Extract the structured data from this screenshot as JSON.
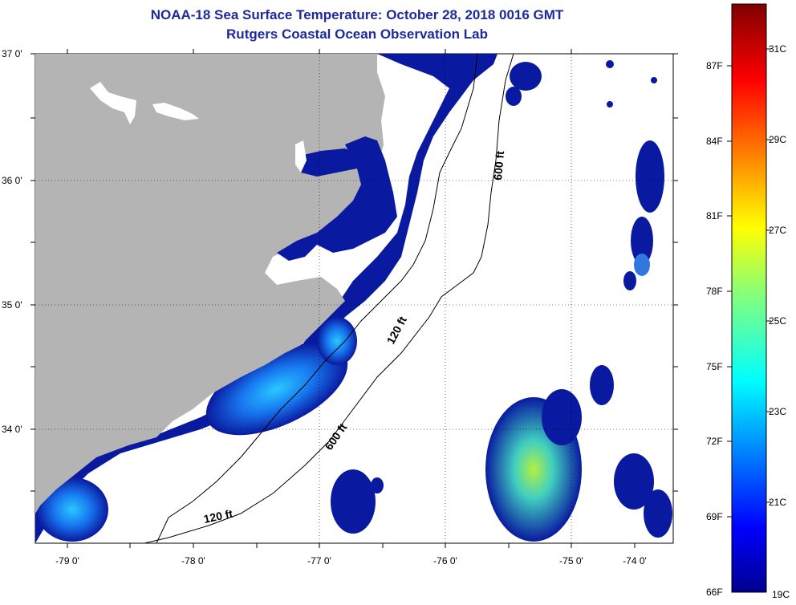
{
  "header": {
    "title": "NOAA-18 Sea Surface Temperature:  October 28, 2018 0016 GMT",
    "subtitle": "Rutgers Coastal Ocean Observation Lab"
  },
  "map": {
    "lat_labels": [
      "37 0'",
      "36 0'",
      "35 0'",
      "34 0'"
    ],
    "lon_labels": [
      "-79 0'",
      "-78 0'",
      "-77 0'",
      "-76 0'",
      "-75 0'",
      "-74 0'"
    ],
    "contour_labels": [
      "600 ft",
      "120 ft",
      "600 ft",
      "120 ft"
    ],
    "colors": {
      "land": "#b4b4b4",
      "cold_water": "#0a1aa0",
      "lake": "#ffffff"
    }
  },
  "colorbar": {
    "fahrenheit_labels": [
      "87F",
      "84F",
      "81F",
      "78F",
      "75F",
      "72F",
      "69F",
      "66F"
    ],
    "celsius_labels": [
      "31C",
      "29C",
      "27C",
      "25C",
      "23C",
      "21C",
      "19C"
    ],
    "range_c": [
      19,
      32
    ],
    "range_f": [
      66,
      89.6
    ]
  }
}
